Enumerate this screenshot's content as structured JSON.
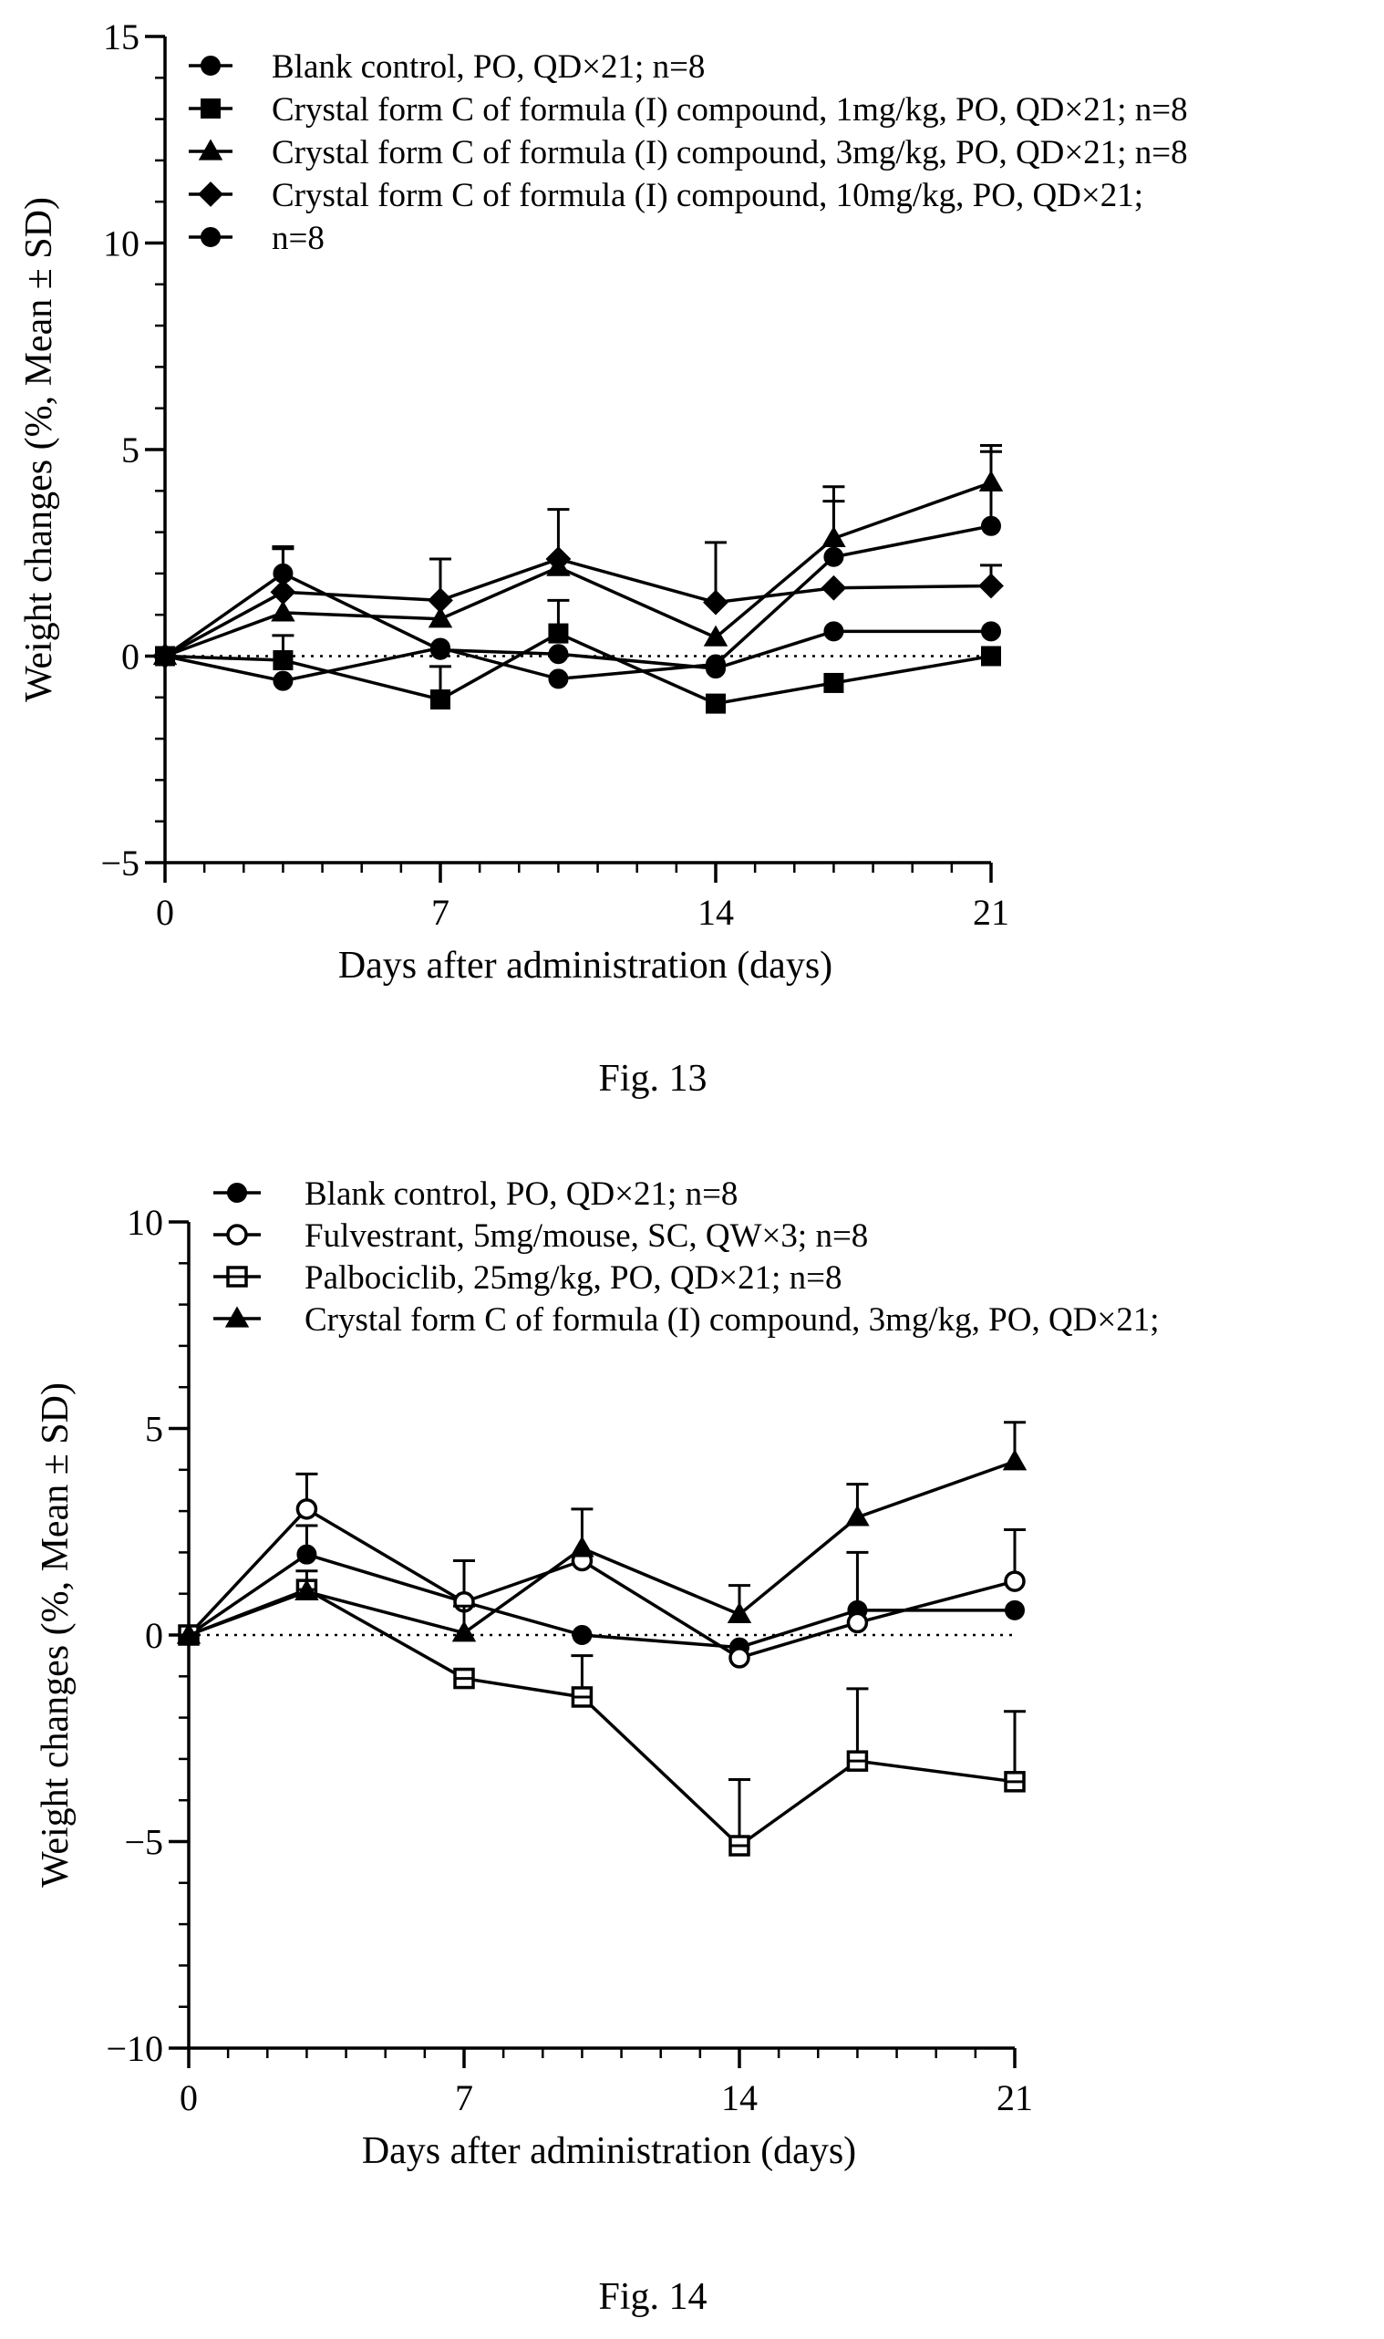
{
  "chart_data": [
    {
      "type": "line",
      "caption": "Fig. 13",
      "xlabel": "Days after administration (days)",
      "ylabel": "Weight changes (%, Mean ± SD)",
      "xlim": [
        0,
        21
      ],
      "ylim": [
        -5,
        15
      ],
      "xticks": [
        0,
        7,
        14,
        21
      ],
      "yticks": [
        -5,
        0,
        5,
        10,
        15
      ],
      "x": [
        0,
        3,
        7,
        10,
        14,
        17,
        21
      ],
      "reference_line": 0,
      "legend": [
        {
          "label": "Blank control, PO, QD×21; n=8",
          "marker": "circle"
        },
        {
          "label": "Crystal form C of formula (I) compound, 1mg/kg, PO, QD×21; n=8",
          "marker": "square"
        },
        {
          "label": "Crystal form C of formula (I) compound, 3mg/kg, PO, QD×21; n=8",
          "marker": "triangle"
        },
        {
          "label": "Crystal form C of formula (I) compound, 10mg/kg, PO, QD×21;",
          "marker": "diamond"
        },
        {
          "label": "n=8",
          "marker": "circle"
        }
      ],
      "series": [
        {
          "marker": "circle",
          "values": [
            0,
            2.0,
            0.15,
            0.05,
            -0.3,
            0.6,
            0.6
          ],
          "errors": [
            0,
            0.6,
            0,
            0,
            0,
            0,
            0
          ]
        },
        {
          "marker": "square",
          "values": [
            0,
            -0.1,
            -1.05,
            0.55,
            -1.15,
            -0.65,
            0.0
          ],
          "errors": [
            0,
            0.6,
            0.8,
            0.8,
            0,
            0,
            0
          ]
        },
        {
          "marker": "triangle",
          "values": [
            0,
            1.05,
            0.9,
            2.15,
            0.45,
            2.85,
            4.2
          ],
          "errors": [
            0,
            0,
            0,
            0,
            0,
            0.9,
            0.9
          ]
        },
        {
          "marker": "diamond",
          "values": [
            0,
            1.55,
            1.35,
            2.35,
            1.3,
            1.65,
            1.7
          ],
          "errors": [
            0,
            1.1,
            1.0,
            1.2,
            1.45,
            0,
            0.5
          ]
        },
        {
          "marker": "circle",
          "values": [
            0,
            -0.6,
            0.2,
            -0.55,
            -0.2,
            2.4,
            3.15
          ],
          "errors": [
            0,
            0,
            0,
            0,
            0,
            1.7,
            1.8
          ]
        }
      ]
    },
    {
      "type": "line",
      "caption": "Fig. 14",
      "xlabel": "Days after administration (days)",
      "ylabel": "Weight changes (%, Mean ± SD)",
      "xlim": [
        0,
        21
      ],
      "ylim": [
        -10,
        10
      ],
      "xticks": [
        0,
        7,
        14,
        21
      ],
      "yticks": [
        -10,
        -5,
        0,
        5,
        10
      ],
      "x": [
        0,
        3,
        7,
        10,
        14,
        17,
        21
      ],
      "reference_line": 0,
      "legend": [
        {
          "label": "Blank control, PO, QD×21; n=8",
          "marker": "circle"
        },
        {
          "label": "Fulvestrant, 5mg/mouse, SC, QW×3; n=8",
          "marker": "open-circle"
        },
        {
          "label": "Palbociclib, 25mg/kg, PO, QD×21; n=8",
          "marker": "open-square"
        },
        {
          "label": "Crystal form C of formula (I) compound, 3mg/kg, PO, QD×21;",
          "marker": "triangle"
        }
      ],
      "series": [
        {
          "marker": "circle",
          "values": [
            0,
            1.95,
            0.8,
            0.0,
            -0.3,
            0.6,
            0.6
          ],
          "errors": [
            0,
            0.7,
            0,
            0,
            0,
            0,
            0
          ]
        },
        {
          "marker": "open-circle",
          "values": [
            0,
            3.05,
            0.8,
            1.8,
            -0.55,
            0.3,
            1.3
          ],
          "errors": [
            0,
            0.85,
            1.0,
            1.25,
            0,
            1.7,
            1.25
          ]
        },
        {
          "marker": "open-square",
          "values": [
            0,
            1.1,
            -1.05,
            -1.5,
            -5.1,
            -3.05,
            -3.55
          ],
          "errors": [
            0,
            0,
            0,
            1.0,
            1.6,
            1.75,
            1.7
          ]
        },
        {
          "marker": "triangle",
          "values": [
            0,
            1.05,
            0.05,
            2.1,
            0.5,
            2.85,
            4.2
          ],
          "errors": [
            0,
            0.5,
            0.65,
            0,
            0.7,
            0.8,
            0.95
          ]
        }
      ]
    }
  ]
}
